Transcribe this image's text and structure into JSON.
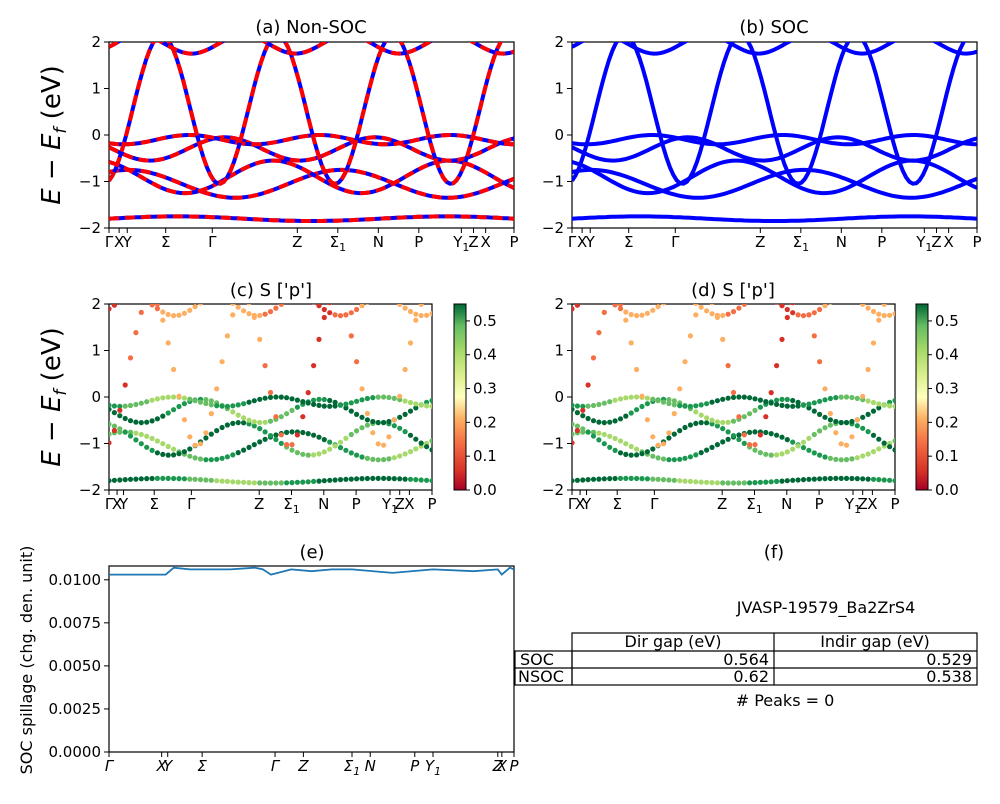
{
  "panels": [
    {
      "id": "a",
      "title": "(a) Non-SOC",
      "ylabel": "E − E_f (eV)",
      "ylim": [
        -2,
        2
      ],
      "yticks": [
        "2",
        "1",
        "0",
        "−1",
        "−2"
      ],
      "xticks": [
        "Γ",
        "X",
        "Y",
        "Σ",
        "Γ",
        "Z",
        "Σ1",
        "N",
        "P",
        "Y1",
        "Z",
        "X",
        "P"
      ]
    },
    {
      "id": "b",
      "title": "(b) SOC",
      "ylim": [
        -2,
        2
      ],
      "yticks": [
        "2",
        "1",
        "0",
        "−1",
        "−2"
      ],
      "xticks": [
        "Γ",
        "X",
        "Y",
        "Σ",
        "Γ",
        "Z",
        "Σ1",
        "N",
        "P",
        "Y1",
        "Z",
        "X",
        "P"
      ]
    },
    {
      "id": "c",
      "title": "(c)  S ['p']",
      "ylabel": "E − E_f (eV)",
      "ylim": [
        -2,
        2
      ],
      "yticks": [
        "2",
        "1",
        "0",
        "−1",
        "−2"
      ],
      "xticks": [
        "Γ",
        "X",
        "Y",
        "Σ",
        "Γ",
        "Z",
        "Σ1",
        "N",
        "P",
        "Y1",
        "Z",
        "X",
        "P"
      ],
      "colorbar": {
        "ticks": [
          "0.0",
          "0.1",
          "0.2",
          "0.3",
          "0.4",
          "0.5"
        ],
        "range": [
          0,
          0.55
        ]
      }
    },
    {
      "id": "d",
      "title": "(d) S ['p']",
      "ylim": [
        -2,
        2
      ],
      "yticks": [
        "2",
        "1",
        "0",
        "−1",
        "−2"
      ],
      "xticks": [
        "Γ",
        "X",
        "Y",
        "Σ",
        "Γ",
        "Z",
        "Σ1",
        "N",
        "P",
        "Y1",
        "Z",
        "X",
        "P"
      ],
      "colorbar": {
        "ticks": [
          "0.0",
          "0.1",
          "0.2",
          "0.3",
          "0.4",
          "0.5"
        ],
        "range": [
          0,
          0.55
        ]
      }
    },
    {
      "id": "e",
      "title": "(e)",
      "ylabel": "SOC spillage (chg. den. unit)",
      "ylim": [
        0,
        0.0108
      ],
      "yticks": [
        "0.0100",
        "0.0075",
        "0.0050",
        "0.0025",
        "0.0000"
      ],
      "xticks": [
        "Γ",
        "X",
        "Y",
        "Σ",
        "Γ",
        "Z",
        "Σ1",
        "N",
        "P",
        "Y1",
        "Z",
        "X",
        "P"
      ]
    },
    {
      "id": "f",
      "title": "(f)"
    }
  ],
  "table": {
    "material": "JVASP-19579_Ba2ZrS4",
    "headers": [
      "",
      "Dir gap (eV)",
      "Indir gap (eV)"
    ],
    "rows": [
      [
        "SOC",
        "0.564",
        "0.529"
      ],
      [
        "NSOC",
        "0.62",
        "0.538"
      ]
    ],
    "peaks": "# Peaks = 0"
  },
  "chart_data": [
    {
      "type": "line",
      "title": "(a) Non-SOC",
      "ylabel": "E − E_f (eV)",
      "ylim": [
        -2,
        2
      ],
      "series": [
        {
          "values": []
        },
        {
          "values": []
        }
      ],
      "colors": [
        "#0000ff",
        "#ff0000"
      ]
    },
    {
      "type": "line",
      "title": "(b) SOC",
      "ylim": [
        -2,
        2
      ],
      "colors": [
        "#0000ff"
      ]
    },
    {
      "type": "scatter",
      "title": "(c)  S ['p']",
      "ylim": [
        -2,
        2
      ],
      "colorscale": "RdYlGn",
      "crange": [
        0,
        0.55
      ]
    },
    {
      "type": "scatter",
      "title": "(d) S ['p']",
      "ylim": [
        -2,
        2
      ],
      "colorscale": "RdYlGn",
      "crange": [
        0,
        0.55
      ]
    },
    {
      "type": "line",
      "title": "(e)",
      "ylabel": "SOC spillage (chg. den. unit)",
      "ylim": [
        0,
        0.0108
      ],
      "x": [
        0,
        0.05,
        0.13,
        0.14,
        0.16,
        0.2,
        0.3,
        0.36,
        0.38,
        0.4,
        0.45,
        0.5,
        0.55,
        0.6,
        0.7,
        0.8,
        0.9,
        0.96,
        0.97,
        0.99,
        1.0
      ],
      "values": [
        0.0103,
        0.0103,
        0.0103,
        0.0103,
        0.0107,
        0.0106,
        0.0106,
        0.0107,
        0.0106,
        0.0103,
        0.0106,
        0.0105,
        0.0106,
        0.0106,
        0.0104,
        0.0106,
        0.0105,
        0.0106,
        0.0103,
        0.0107,
        0.0106
      ],
      "color": "#1f77b4"
    }
  ]
}
